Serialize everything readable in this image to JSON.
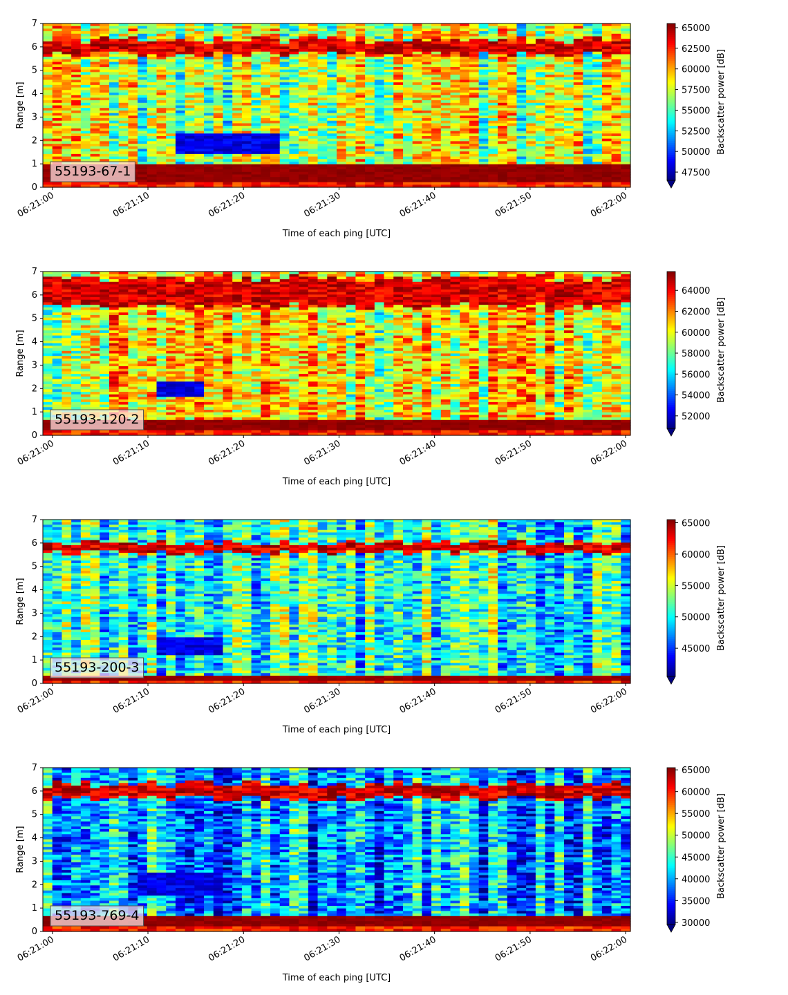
{
  "chart_data": [
    {
      "type": "heatmap",
      "xlabel": "Time of each ping [UTC]",
      "ylabel": "Range [m]",
      "colorbar_label": "Backscatter power [dB]",
      "x_ticks": [
        "06:21:00",
        "06:21:10",
        "06:21:20",
        "06:21:30",
        "06:21:40",
        "06:21:50",
        "06:22:00"
      ],
      "xlim": [
        "06:20:59",
        "06:22:00.5"
      ],
      "ylim": [
        0,
        7
      ],
      "y_ticks": [
        0,
        1,
        2,
        3,
        4,
        5,
        6,
        7
      ],
      "color_ticks": [
        47500,
        50000,
        52500,
        55000,
        57500,
        60000,
        62500,
        65000
      ],
      "color_range": [
        46500,
        65500
      ],
      "colormap": "jet",
      "label_box": "55193-67-1",
      "features": {
        "bottom_band": [
          0.2,
          1.0
        ],
        "surface_band": [
          5.7,
          6.3
        ],
        "low_patch": {
          "t_start": "06:21:13",
          "t_end": "06:21:24",
          "range": [
            1.4,
            2.3
          ]
        }
      }
    },
    {
      "type": "heatmap",
      "xlabel": "Time of each ping [UTC]",
      "ylabel": "Range [m]",
      "colorbar_label": "Backscatter power [dB]",
      "x_ticks": [
        "06:21:00",
        "06:21:10",
        "06:21:20",
        "06:21:30",
        "06:21:40",
        "06:21:50",
        "06:22:00"
      ],
      "xlim": [
        "06:20:59",
        "06:22:00.5"
      ],
      "ylim": [
        0,
        7
      ],
      "y_ticks": [
        0,
        1,
        2,
        3,
        4,
        5,
        6,
        7
      ],
      "color_ticks": [
        52000,
        54000,
        56000,
        58000,
        60000,
        62000,
        64000
      ],
      "color_range": [
        50800,
        65800
      ],
      "colormap": "jet",
      "label_box": "55193-120-2",
      "features": {
        "bottom_band": [
          0.2,
          0.7
        ],
        "surface_band": [
          5.5,
          6.7
        ],
        "low_patch": {
          "t_start": "06:21:11",
          "t_end": "06:21:16",
          "range": [
            1.6,
            2.3
          ]
        }
      }
    },
    {
      "type": "heatmap",
      "xlabel": "Time of each ping [UTC]",
      "ylabel": "Range [m]",
      "colorbar_label": "Backscatter power [dB]",
      "x_ticks": [
        "06:21:00",
        "06:21:10",
        "06:21:20",
        "06:21:30",
        "06:21:40",
        "06:21:50",
        "06:22:00"
      ],
      "xlim": [
        "06:20:59",
        "06:22:00.5"
      ],
      "ylim": [
        0,
        7
      ],
      "y_ticks": [
        0,
        1,
        2,
        3,
        4,
        5,
        6,
        7
      ],
      "color_ticks": [
        45000,
        50000,
        55000,
        60000,
        65000
      ],
      "color_range": [
        40500,
        65500
      ],
      "colormap": "jet",
      "label_box": "55193-200-3",
      "features": {
        "bottom_band": [
          0.1,
          0.3
        ],
        "surface_band": [
          5.6,
          6.0
        ],
        "low_patch": {
          "t_start": "06:21:11",
          "t_end": "06:21:18",
          "range": [
            1.2,
            2.0
          ]
        }
      }
    },
    {
      "type": "heatmap",
      "xlabel": "Time of each ping [UTC]",
      "ylabel": "Range [m]",
      "colorbar_label": "Backscatter power [dB]",
      "x_ticks": [
        "06:21:00",
        "06:21:10",
        "06:21:20",
        "06:21:30",
        "06:21:40",
        "06:21:50",
        "06:22:00"
      ],
      "xlim": [
        "06:20:59",
        "06:22:00.5"
      ],
      "ylim": [
        0,
        7
      ],
      "y_ticks": [
        0,
        1,
        2,
        3,
        4,
        5,
        6,
        7
      ],
      "color_ticks": [
        30000,
        35000,
        40000,
        45000,
        50000,
        55000,
        60000,
        65000
      ],
      "color_range": [
        29500,
        65500
      ],
      "colormap": "jet",
      "label_box": "55193-769-4",
      "features": {
        "bottom_band": [
          0.25,
          0.65
        ],
        "surface_band": [
          5.7,
          6.3
        ],
        "low_patch": {
          "t_start": "06:21:09",
          "t_end": "06:21:18",
          "range": [
            1.5,
            2.5
          ]
        }
      }
    }
  ]
}
